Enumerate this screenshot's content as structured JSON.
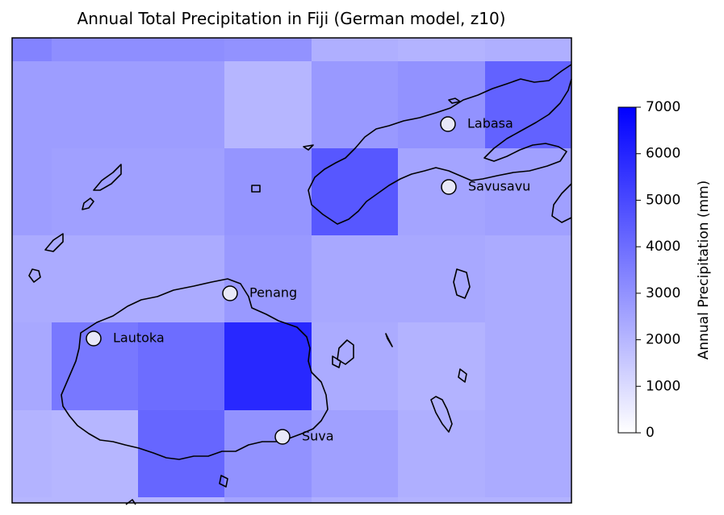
{
  "title": "Annual Total Precipitation in Fiji (German model, z10)",
  "map": {
    "grid_rows": [
      [
        3400,
        3100,
        3100,
        3000,
        2200,
        2100,
        2200
      ],
      [
        2700,
        2700,
        2700,
        2000,
        2800,
        3000,
        4300
      ],
      [
        2700,
        2600,
        2600,
        2900,
        4600,
        2500,
        2600
      ],
      [
        2300,
        2300,
        2300,
        2800,
        2400,
        2400,
        2300
      ],
      [
        2400,
        3700,
        4000,
        5900,
        2300,
        2100,
        2300
      ],
      [
        2100,
        2000,
        4200,
        3000,
        2600,
        2200,
        2300
      ],
      [
        2000,
        2000,
        2000,
        2500,
        2200,
        2100,
        2100
      ]
    ],
    "cities": [
      {
        "name": "Labasa"
      },
      {
        "name": "Savusavu"
      },
      {
        "name": "Penang"
      },
      {
        "name": "Lautoka"
      },
      {
        "name": "Suva"
      }
    ],
    "coastline_color": "#000000",
    "marker_fill": "#e8e8f8"
  },
  "colorbar": {
    "label": "Annual Precipitation (mm)",
    "vmin": 0,
    "vmax": 7000,
    "ticks": [
      "0",
      "1000",
      "2000",
      "3000",
      "4000",
      "5000",
      "6000",
      "7000"
    ],
    "color_low": "#ffffff",
    "color_high": "#0000ff"
  }
}
